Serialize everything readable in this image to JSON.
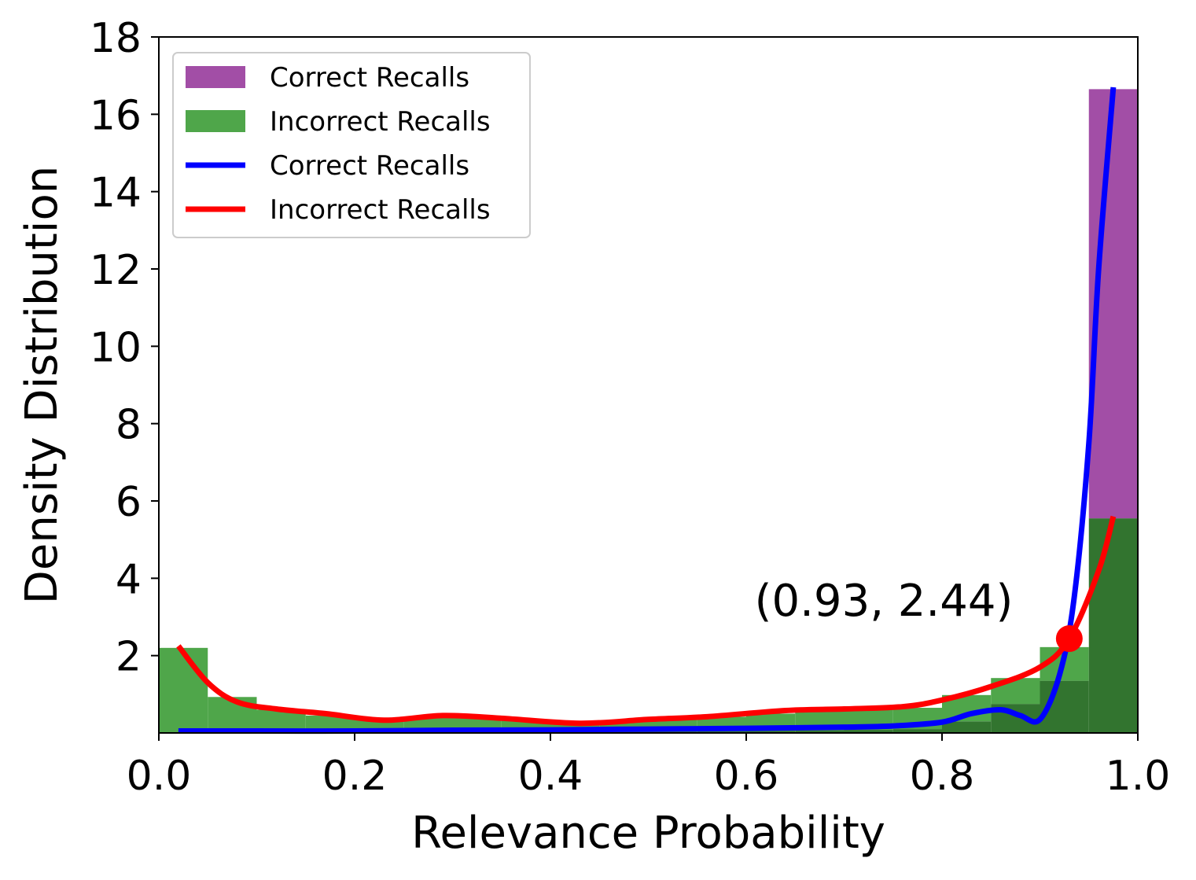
{
  "chart_data": {
    "type": "bar",
    "title": "",
    "xlabel": "Relevance Probability",
    "ylabel": "Density Distribution",
    "xlim": [
      0.0,
      1.0
    ],
    "ylim": [
      0,
      18
    ],
    "x_ticks": [
      "0.0",
      "0.2",
      "0.4",
      "0.6",
      "0.8",
      "1.0"
    ],
    "y_ticks": [
      "2",
      "4",
      "6",
      "8",
      "10",
      "12",
      "14",
      "16",
      "18"
    ],
    "grid": false,
    "legend_position": "top-left",
    "bin_edges": [
      0.0,
      0.05,
      0.1,
      0.15,
      0.2,
      0.25,
      0.3,
      0.35,
      0.4,
      0.45,
      0.5,
      0.55,
      0.6,
      0.65,
      0.7,
      0.75,
      0.8,
      0.85,
      0.9,
      0.95,
      1.0
    ],
    "histograms": [
      {
        "name": "Correct Recalls",
        "color": "#a24ea6",
        "values": [
          0.02,
          0.02,
          0.03,
          0.03,
          0.03,
          0.03,
          0.03,
          0.04,
          0.04,
          0.04,
          0.04,
          0.05,
          0.06,
          0.07,
          0.08,
          0.1,
          0.3,
          0.75,
          1.35,
          16.65
        ]
      },
      {
        "name": "Incorrect Recalls",
        "color": "#4fa64a",
        "values": [
          2.2,
          0.93,
          0.6,
          0.45,
          0.35,
          0.4,
          0.38,
          0.33,
          0.28,
          0.32,
          0.35,
          0.42,
          0.5,
          0.58,
          0.62,
          0.65,
          0.98,
          1.42,
          2.22,
          5.55
        ]
      }
    ],
    "overlap_color": "#32742f",
    "kde_lines": [
      {
        "name": "Correct Recalls",
        "color": "#0000ff",
        "x": [
          0.02,
          0.1,
          0.2,
          0.3,
          0.4,
          0.5,
          0.6,
          0.7,
          0.75,
          0.8,
          0.83,
          0.86,
          0.88,
          0.9,
          0.92,
          0.935,
          0.95,
          0.96,
          0.975
        ],
        "y": [
          0.05,
          0.05,
          0.05,
          0.07,
          0.08,
          0.1,
          0.12,
          0.15,
          0.18,
          0.28,
          0.5,
          0.6,
          0.45,
          0.35,
          1.5,
          3.5,
          7.5,
          12.0,
          16.7
        ]
      },
      {
        "name": "Incorrect Recalls",
        "color": "#ff0000",
        "x": [
          0.02,
          0.05,
          0.08,
          0.12,
          0.17,
          0.23,
          0.29,
          0.35,
          0.43,
          0.5,
          0.56,
          0.64,
          0.7,
          0.76,
          0.8,
          0.85,
          0.9,
          0.93,
          0.96,
          0.975
        ],
        "y": [
          2.25,
          1.3,
          0.8,
          0.62,
          0.5,
          0.33,
          0.45,
          0.38,
          0.25,
          0.35,
          0.42,
          0.58,
          0.62,
          0.68,
          0.85,
          1.2,
          1.7,
          2.44,
          4.2,
          5.6
        ]
      }
    ],
    "annotation": {
      "text": "(0.93, 2.44)",
      "x": 0.93,
      "y": 2.44,
      "marker_color": "#ff0000"
    },
    "legend": [
      {
        "label": "Correct Recalls",
        "kind": "patch",
        "color": "#a24ea6"
      },
      {
        "label": "Incorrect Recalls",
        "kind": "patch",
        "color": "#4fa64a"
      },
      {
        "label": "Correct Recalls",
        "kind": "line",
        "color": "#0000ff"
      },
      {
        "label": "Incorrect Recalls",
        "kind": "line",
        "color": "#ff0000"
      }
    ]
  }
}
